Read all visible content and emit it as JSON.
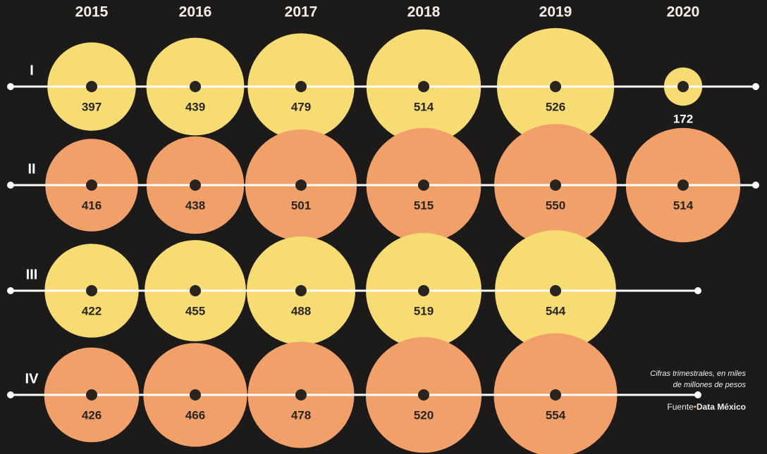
{
  "chart_data": {
    "type": "bubble",
    "categories": [
      "2015",
      "2016",
      "2017",
      "2018",
      "2019",
      "2020"
    ],
    "series": [
      {
        "name": "I",
        "color": "#f6dc72",
        "values": [
          397,
          439,
          479,
          514,
          526,
          172
        ]
      },
      {
        "name": "II",
        "color": "#f2a06a",
        "values": [
          416,
          438,
          501,
          515,
          550,
          514
        ]
      },
      {
        "name": "III",
        "color": "#f6dc72",
        "values": [
          422,
          455,
          488,
          519,
          544,
          null
        ]
      },
      {
        "name": "IV",
        "color": "#f2a06a",
        "values": [
          426,
          466,
          478,
          520,
          554,
          null
        ]
      }
    ],
    "note": [
      "Cifras trimestrales, en miles",
      "de millones de pesos"
    ],
    "source_label": "Fuente",
    "source": "Data México"
  }
}
